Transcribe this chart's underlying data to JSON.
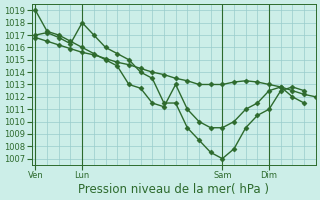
{
  "background_color": "#cceee8",
  "grid_color": "#99cccc",
  "line_color": "#2d6a2d",
  "marker": "D",
  "markersize": 2.5,
  "linewidth": 1.0,
  "ylim": [
    1006.5,
    1019.5
  ],
  "yticks": [
    1007,
    1008,
    1009,
    1010,
    1011,
    1012,
    1013,
    1014,
    1015,
    1016,
    1017,
    1018,
    1019
  ],
  "xlabel": "Pression niveau de la mer( hPa )",
  "xlabel_fontsize": 8.5,
  "tick_fontsize": 6.0,
  "xtick_labels": [
    "Ven",
    "Lun",
    "Sam",
    "Dim"
  ],
  "xtick_positions": [
    0,
    24,
    96,
    120
  ],
  "xlim": [
    -2,
    144
  ],
  "vlines": [
    0,
    24,
    96,
    120
  ],
  "series": [
    {
      "x": [
        0,
        6,
        12,
        18,
        24,
        30,
        36,
        42,
        48,
        54,
        60,
        66,
        72,
        78,
        84,
        90,
        96,
        102,
        108,
        114,
        120,
        126,
        132,
        138,
        144
      ],
      "y": [
        1016.8,
        1016.5,
        1016.2,
        1015.9,
        1015.6,
        1015.4,
        1015.1,
        1014.8,
        1014.6,
        1014.3,
        1014.0,
        1013.8,
        1013.5,
        1013.3,
        1013.0,
        1013.0,
        1013.0,
        1013.2,
        1013.3,
        1013.2,
        1013.0,
        1012.8,
        1012.5,
        1012.2,
        1012.0
      ]
    },
    {
      "x": [
        0,
        6,
        12,
        18,
        24,
        30,
        36,
        42,
        48,
        54,
        60,
        66,
        72,
        78,
        84,
        90,
        96,
        102,
        108,
        114,
        120,
        126,
        132,
        138
      ],
      "y": [
        1019.0,
        1017.3,
        1017.0,
        1016.5,
        1016.0,
        1015.5,
        1015.0,
        1014.5,
        1013.0,
        1012.7,
        1011.5,
        1011.2,
        1013.0,
        1011.0,
        1010.0,
        1009.5,
        1009.5,
        1010.0,
        1011.0,
        1011.5,
        1012.5,
        1012.8,
        1012.0,
        1011.5
      ]
    },
    {
      "x": [
        0,
        6,
        12,
        18,
        24,
        30,
        36,
        42,
        48,
        54,
        60,
        66,
        72,
        78,
        84,
        90,
        96,
        102,
        108,
        114,
        120,
        126,
        132,
        138
      ],
      "y": [
        1017.0,
        1017.2,
        1016.8,
        1016.3,
        1018.0,
        1017.0,
        1016.0,
        1015.5,
        1015.0,
        1014.0,
        1013.5,
        1011.5,
        1011.5,
        1009.5,
        1008.5,
        1007.5,
        1007.0,
        1007.8,
        1009.5,
        1010.5,
        1011.0,
        1012.5,
        1012.8,
        1012.5
      ]
    }
  ]
}
